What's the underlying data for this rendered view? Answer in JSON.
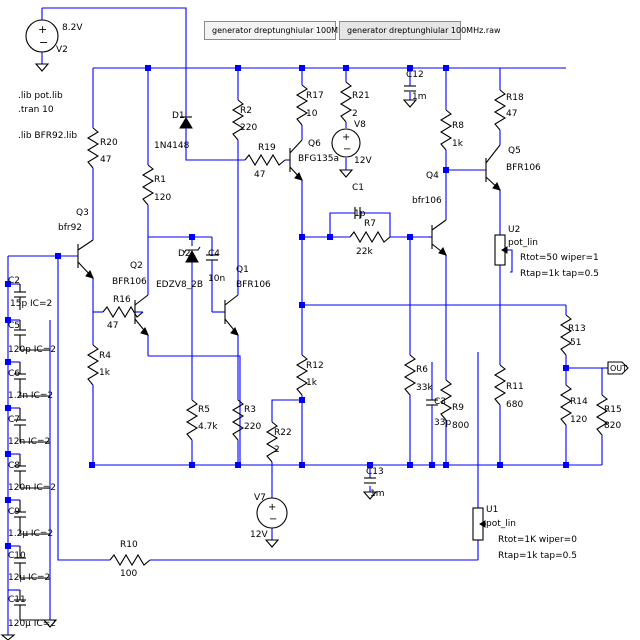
{
  "tabs": [
    {
      "label": "generator dreptunghiular 100MHz.asc"
    },
    {
      "label": "generator dreptunghiular 100MHz.raw"
    }
  ],
  "directives": [
    ".lib pot.lib",
    ".tran 10",
    ".lib BFR92.lib"
  ],
  "net_labels": {
    "out": "OUT"
  },
  "components": {
    "V2": {
      "ref": "V2",
      "value": "8.2V"
    },
    "V8": {
      "ref": "V8",
      "value": "12V"
    },
    "V7": {
      "ref": "V7",
      "value": "12V"
    },
    "D1": {
      "ref": "D1",
      "value": "1N4148"
    },
    "D2": {
      "ref": "D2",
      "value": "EDZV8_2B"
    },
    "R1": {
      "ref": "R1",
      "value": "120"
    },
    "R2": {
      "ref": "R2",
      "value": "220"
    },
    "R3": {
      "ref": "R3",
      "value": "220"
    },
    "R4": {
      "ref": "R4",
      "value": "1k"
    },
    "R5": {
      "ref": "R5",
      "value": "4.7k"
    },
    "R6": {
      "ref": "R6",
      "value": "33k"
    },
    "R7": {
      "ref": "R7",
      "value": "22k"
    },
    "R8": {
      "ref": "R8",
      "value": "1k"
    },
    "R9": {
      "ref": "R9",
      "value": "800"
    },
    "R10": {
      "ref": "R10",
      "value": "100"
    },
    "R11": {
      "ref": "R11",
      "value": "680"
    },
    "R12": {
      "ref": "R12",
      "value": "1k"
    },
    "R13": {
      "ref": "R13",
      "value": "51"
    },
    "R14": {
      "ref": "R14",
      "value": "120"
    },
    "R15": {
      "ref": "R15",
      "value": "820"
    },
    "R16": {
      "ref": "R16",
      "value": "47"
    },
    "R17": {
      "ref": "R17",
      "value": "10"
    },
    "R18": {
      "ref": "R18",
      "value": "47"
    },
    "R19": {
      "ref": "R19",
      "value": "47"
    },
    "R20": {
      "ref": "R20",
      "value": "47"
    },
    "R21": {
      "ref": "R21",
      "value": "2"
    },
    "R22": {
      "ref": "R22",
      "value": "2"
    },
    "C1": {
      "ref": "C1",
      "value": "1p"
    },
    "C2": {
      "ref": "C2",
      "value": "15p IC=2"
    },
    "C3": {
      "ref": "C3",
      "value": "33p"
    },
    "C4": {
      "ref": "C4",
      "value": "10n"
    },
    "C5": {
      "ref": "C5",
      "value": "120p IC=2"
    },
    "C6": {
      "ref": "C6",
      "value": "1.2n IC=2"
    },
    "C7": {
      "ref": "C7",
      "value": "12n IC=2"
    },
    "C8": {
      "ref": "C8",
      "value": "120n IC=2"
    },
    "C9": {
      "ref": "C9",
      "value": "1.2µ IC=2"
    },
    "C10": {
      "ref": "C10",
      "value": "12µ IC=2"
    },
    "C11": {
      "ref": "C11",
      "value": "120µ IC=2"
    },
    "C12": {
      "ref": "C12",
      "value": "1m"
    },
    "C13": {
      "ref": "C13",
      "value": "1m"
    },
    "Q1": {
      "ref": "Q1",
      "value": "BFR106"
    },
    "Q2": {
      "ref": "Q2",
      "value": "BFR106"
    },
    "Q3": {
      "ref": "Q3",
      "value": "bfr92"
    },
    "Q4": {
      "ref": "Q4",
      "value": "bfr106"
    },
    "Q5": {
      "ref": "Q5",
      "value": "BFR106"
    },
    "Q6": {
      "ref": "Q6",
      "value": "BFG135a"
    },
    "U1": {
      "ref": "U1",
      "value": "pot_lin",
      "param1": "Rtot=1K wiper=0",
      "param2": "Rtap=1k tap=0.5"
    },
    "U2": {
      "ref": "U2",
      "value": "pot_lin",
      "param1": "Rtot=50 wiper=1",
      "param2": "Rtap=1k tap=0.5"
    }
  }
}
